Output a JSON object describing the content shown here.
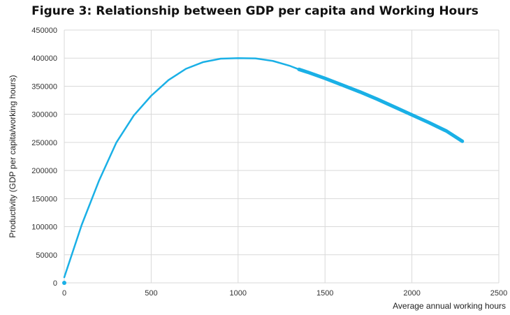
{
  "chart_data": {
    "type": "line",
    "title": "Figure 3: Relationship between GDP per capita and Working Hours",
    "xlabel": "Average annual working hours",
    "ylabel": "Productivity (GDP per capita/working hours)",
    "xlim": [
      0,
      2500
    ],
    "ylim": [
      0,
      450000
    ],
    "xticks": [
      0,
      500,
      1000,
      1500,
      2000,
      2500
    ],
    "yticks": [
      0,
      50000,
      100000,
      150000,
      200000,
      250000,
      300000,
      350000,
      400000,
      450000
    ],
    "grid": true,
    "line_color": "#1AB0E6",
    "series": [
      {
        "x": [
          0,
          100,
          200,
          300,
          400,
          500,
          600,
          700,
          800,
          900,
          1000,
          1100,
          1200,
          1300,
          1350
        ],
        "y": [
          10000,
          103000,
          182000,
          250000,
          298000,
          333000,
          361000,
          381000,
          393000,
          399000,
          400000,
          399500,
          395000,
          386000,
          380000
        ]
      },
      {
        "x": [
          1350,
          1400,
          1500,
          1600,
          1700,
          1800,
          1900,
          2000,
          2100,
          2200,
          2290
        ],
        "y": [
          380000,
          375000,
          364000,
          352000,
          340000,
          327000,
          313000,
          299000,
          285000,
          270000,
          252000
        ]
      }
    ],
    "point": {
      "x": 0,
      "y": 0
    }
  }
}
